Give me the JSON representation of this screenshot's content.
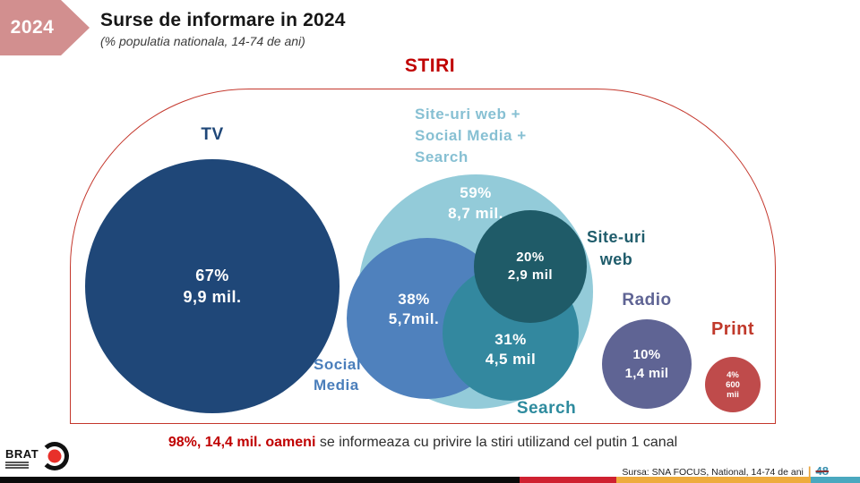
{
  "header": {
    "year_badge": "2024",
    "badge_color": "#d28f8f",
    "title": "Surse de informare in 2024",
    "subtitle": "(% populatia nationala, 14-74 de ani)"
  },
  "diagram": {
    "umbrella_label": "STIRI",
    "umbrella_color": "#c00000",
    "outline_color": "#c4372c",
    "bubbles": {
      "tv": {
        "label": "TV",
        "percent": "67%",
        "amount": "9,9 mil.",
        "fill": "#1f4778",
        "label_color": "#1f4778"
      },
      "group": {
        "label": "Site-uri web +\nSocial Media +\nSearch",
        "percent": "59%",
        "amount": "8,7 mil.",
        "fill": "#93cbd9",
        "label_color": "#87c0d3"
      },
      "social": {
        "label": "Social\nMedia",
        "percent": "38%",
        "amount": "5,7mil.",
        "fill": "#4f81bd",
        "label_color": "#4a7ebb"
      },
      "search": {
        "label": "Search",
        "percent": "31%",
        "amount": "4,5 mil",
        "fill": "#33889f",
        "label_color": "#2e8b9e"
      },
      "web": {
        "label": "Site-uri\nweb",
        "percent": "20%",
        "amount": "2,9 mil",
        "fill": "#1f5b68",
        "label_color": "#1f5c6b"
      },
      "radio": {
        "label": "Radio",
        "percent": "10%",
        "amount": "1,4 mil",
        "fill": "#5f6494",
        "label_color": "#5f6494"
      },
      "print": {
        "label": "Print",
        "percent": "4%",
        "amount": "600",
        "amount2": "mii",
        "fill": "#bf4b4b",
        "label_color": "#c0392b"
      }
    }
  },
  "footnote": {
    "highlight": "98%, 14,4 mil. oameni",
    "highlight_color": "#c00000",
    "rest": "se informeaza cu privire la stiri utilizand cel putin 1 canal"
  },
  "footer": {
    "logo_text": "BRAT",
    "source": "Sursa: SNA FOCUS, National, 14-74 de ani",
    "separator": "|",
    "page_number": "48"
  },
  "chart_data": {
    "type": "venn-bubble",
    "title": "Surse de informare in 2024",
    "subtitle": "(% populatia nationala, 14-74 de ani)",
    "umbrella": "STIRI",
    "total": {
      "percent": 98,
      "reach_label": "14,4 mil. oameni",
      "note": "se informeaza cu privire la stiri utilizand cel putin 1 canal"
    },
    "bubbles": [
      {
        "name": "TV",
        "percent": 67,
        "reach_label": "9,9 mil."
      },
      {
        "name": "Site-uri web + Social Media + Search",
        "percent": 59,
        "reach_label": "8,7 mil."
      },
      {
        "name": "Social Media",
        "percent": 38,
        "reach_label": "5,7mil.",
        "subset_of": "Site-uri web + Social Media + Search"
      },
      {
        "name": "Search",
        "percent": 31,
        "reach_label": "4,5 mil",
        "subset_of": "Site-uri web + Social Media + Search"
      },
      {
        "name": "Site-uri web",
        "percent": 20,
        "reach_label": "2,9 mil",
        "subset_of": "Site-uri web + Social Media + Search"
      },
      {
        "name": "Radio",
        "percent": 10,
        "reach_label": "1,4 mil"
      },
      {
        "name": "Print",
        "percent": 4,
        "reach_label": "600 mii"
      }
    ],
    "source": "Sursa: SNA FOCUS, National, 14-74 de ani",
    "page_number": "48"
  }
}
